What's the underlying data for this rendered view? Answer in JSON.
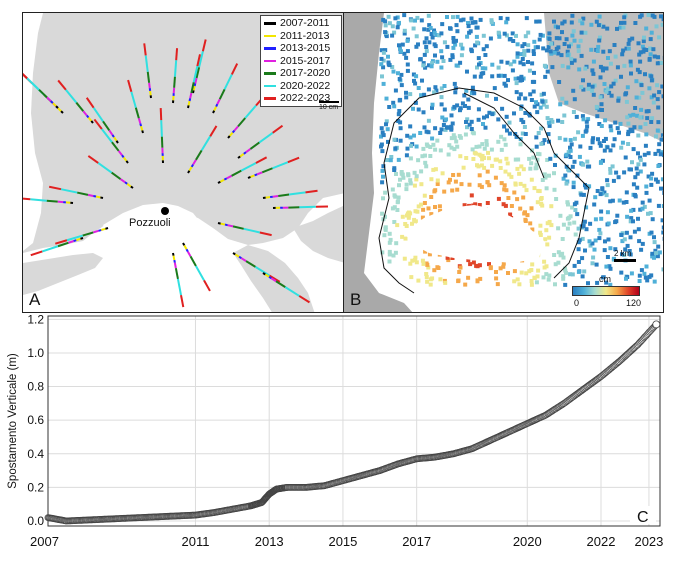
{
  "panel_a": {
    "label": "A",
    "town_label": "Pozzuoli",
    "scale_label": "10 cm",
    "legend": [
      {
        "label": "2007-2011",
        "color": "#000000"
      },
      {
        "label": "2011-2013",
        "color": "#f2e600"
      },
      {
        "label": "2013-2015",
        "color": "#2020ff"
      },
      {
        "label": "2015-2017",
        "color": "#e020e0"
      },
      {
        "label": "2017-2020",
        "color": "#1a7a1a"
      },
      {
        "label": "2020-2022",
        "color": "#30e0e0"
      },
      {
        "label": "2022-2023",
        "color": "#e02020"
      }
    ]
  },
  "panel_b": {
    "label": "B",
    "scale_label": "2 km",
    "colorbar_unit": "cm",
    "colorbar_min": "0",
    "colorbar_max": "120"
  },
  "panel_c": {
    "label": "C",
    "ylabel": "Spostamento Verticale (m)"
  },
  "chart_data": {
    "type": "scatter",
    "ylabel": "Spostamento Verticale (m)",
    "ylim": [
      -0.03,
      1.22
    ],
    "x_tick_labels": [
      "2007",
      "2011",
      "2013",
      "2015",
      "2017",
      "2020",
      "2022",
      "2023"
    ],
    "y_tick_labels": [
      "0.0",
      "0.2",
      "0.4",
      "0.6",
      "0.8",
      "1.0",
      "1.2"
    ],
    "grid": true,
    "series": [
      {
        "x": [
          2007.0,
          2007.5,
          2008.0,
          2008.5,
          2009.0,
          2009.5,
          2010.0,
          2010.5,
          2011.0,
          2011.5,
          2012.0,
          2012.5,
          2012.8,
          2013.0,
          2013.2,
          2013.5,
          2014.0,
          2014.5,
          2015.0,
          2015.5,
          2016.0,
          2016.5,
          2017.0,
          2017.5,
          2018.0,
          2018.5,
          2019.0,
          2019.5,
          2020.0,
          2020.5,
          2021.0,
          2021.5,
          2022.0,
          2022.5,
          2023.0,
          2023.5
        ],
        "values": [
          0.02,
          0.0,
          0.005,
          0.01,
          0.015,
          0.02,
          0.025,
          0.03,
          0.035,
          0.05,
          0.07,
          0.09,
          0.11,
          0.16,
          0.19,
          0.2,
          0.2,
          0.21,
          0.24,
          0.27,
          0.3,
          0.34,
          0.37,
          0.38,
          0.4,
          0.43,
          0.48,
          0.53,
          0.58,
          0.63,
          0.7,
          0.78,
          0.86,
          0.95,
          1.05,
          1.17
        ]
      }
    ]
  }
}
